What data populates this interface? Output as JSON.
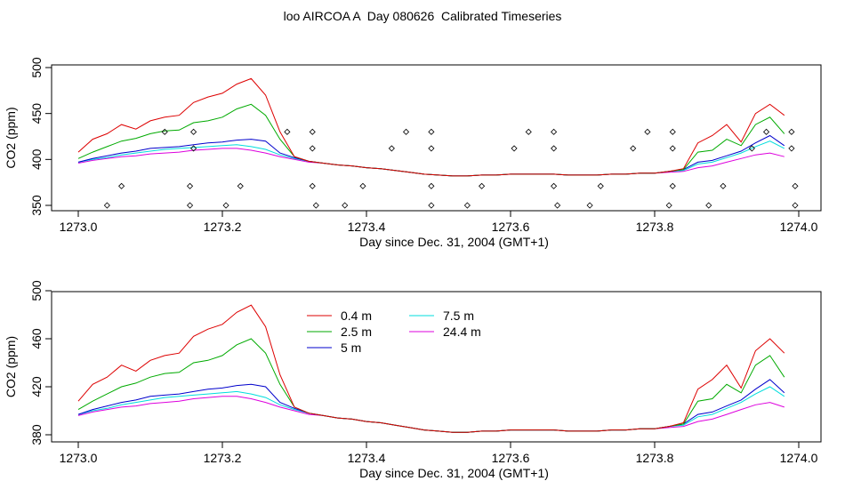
{
  "title": "loo AIRCOA A  Day 080626  Calibrated Timeseries",
  "chart_data": [
    {
      "type": "line+scatter",
      "xlabel": "Day since Dec. 31, 2004 (GMT+1)",
      "ylabel": "CO2 (ppm)",
      "xlim": [
        1273.0,
        1274.0
      ],
      "ylim": [
        345,
        505
      ],
      "xticks": [
        "1273.0",
        "1273.2",
        "1273.4",
        "1273.6",
        "1273.8",
        "1274.0"
      ],
      "yticks": [
        "350",
        "400",
        "450",
        "500"
      ],
      "x": [
        1273.0,
        1273.02,
        1273.04,
        1273.06,
        1273.08,
        1273.1,
        1273.12,
        1273.14,
        1273.16,
        1273.18,
        1273.2,
        1273.22,
        1273.24,
        1273.26,
        1273.28,
        1273.3,
        1273.32,
        1273.34,
        1273.36,
        1273.38,
        1273.4,
        1273.42,
        1273.44,
        1273.46,
        1273.48,
        1273.5,
        1273.52,
        1273.54,
        1273.56,
        1273.58,
        1273.6,
        1273.62,
        1273.64,
        1273.66,
        1273.68,
        1273.7,
        1273.72,
        1273.74,
        1273.76,
        1273.78,
        1273.8,
        1273.82,
        1273.84,
        1273.86,
        1273.88,
        1273.9,
        1273.92,
        1273.94,
        1273.96,
        1273.98
      ],
      "series": [
        {
          "name": "0.4 m",
          "color": "#dd0000",
          "values": [
            408,
            422,
            428,
            438,
            433,
            442,
            446,
            448,
            462,
            468,
            472,
            482,
            488,
            470,
            430,
            403,
            398,
            396,
            394,
            393,
            391,
            390,
            388,
            386,
            384,
            383,
            382,
            382,
            383,
            383,
            384,
            384,
            384,
            384,
            383,
            383,
            383,
            384,
            384,
            385,
            385,
            387,
            390,
            418,
            426,
            438,
            419,
            450,
            460,
            448
          ]
        },
        {
          "name": "2.5 m",
          "color": "#00aa00",
          "values": [
            401,
            408,
            414,
            420,
            423,
            428,
            431,
            432,
            440,
            442,
            446,
            455,
            460,
            448,
            422,
            403,
            398,
            396,
            394,
            393,
            391,
            390,
            388,
            386,
            384,
            383,
            382,
            382,
            383,
            383,
            384,
            384,
            384,
            384,
            383,
            383,
            383,
            384,
            384,
            385,
            385,
            387,
            389,
            408,
            410,
            422,
            415,
            438,
            446,
            428
          ]
        },
        {
          "name": "5 m",
          "color": "#0000cc",
          "values": [
            397,
            401,
            404,
            407,
            409,
            412,
            413,
            414,
            416,
            418,
            419,
            421,
            422,
            420,
            407,
            402,
            398,
            396,
            394,
            393,
            391,
            390,
            388,
            386,
            384,
            383,
            382,
            382,
            383,
            383,
            384,
            384,
            384,
            384,
            383,
            383,
            383,
            384,
            384,
            385,
            385,
            387,
            389,
            397,
            399,
            404,
            409,
            418,
            426,
            415
          ]
        },
        {
          "name": "7.5 m",
          "color": "#00dddd",
          "values": [
            397,
            400,
            402,
            405,
            407,
            409,
            411,
            412,
            413,
            414,
            415,
            416,
            414,
            411,
            405,
            401,
            398,
            396,
            394,
            393,
            391,
            390,
            388,
            386,
            384,
            383,
            382,
            382,
            383,
            383,
            384,
            384,
            384,
            384,
            383,
            383,
            383,
            384,
            384,
            385,
            385,
            387,
            388,
            395,
            397,
            402,
            407,
            414,
            420,
            412
          ]
        },
        {
          "name": "24.4 m",
          "color": "#dd00dd",
          "values": [
            396,
            399,
            401,
            403,
            404,
            406,
            407,
            408,
            410,
            411,
            412,
            412,
            410,
            407,
            403,
            400,
            397,
            396,
            394,
            393,
            391,
            390,
            388,
            386,
            384,
            383,
            382,
            382,
            383,
            383,
            384,
            384,
            384,
            384,
            383,
            383,
            383,
            384,
            384,
            385,
            385,
            386,
            387,
            391,
            393,
            397,
            401,
            405,
            407,
            403
          ]
        }
      ],
      "markers": [
        {
          "x": 1273.04,
          "y": 350
        },
        {
          "x": 1273.06,
          "y": 371
        },
        {
          "x": 1273.12,
          "y": 430
        },
        {
          "x": 1273.155,
          "y": 350
        },
        {
          "x": 1273.155,
          "y": 371
        },
        {
          "x": 1273.16,
          "y": 412
        },
        {
          "x": 1273.16,
          "y": 430
        },
        {
          "x": 1273.205,
          "y": 350
        },
        {
          "x": 1273.225,
          "y": 371
        },
        {
          "x": 1273.29,
          "y": 430
        },
        {
          "x": 1273.325,
          "y": 430
        },
        {
          "x": 1273.325,
          "y": 412
        },
        {
          "x": 1273.325,
          "y": 371
        },
        {
          "x": 1273.33,
          "y": 350
        },
        {
          "x": 1273.37,
          "y": 350
        },
        {
          "x": 1273.395,
          "y": 371
        },
        {
          "x": 1273.435,
          "y": 412
        },
        {
          "x": 1273.455,
          "y": 430
        },
        {
          "x": 1273.49,
          "y": 430
        },
        {
          "x": 1273.49,
          "y": 412
        },
        {
          "x": 1273.49,
          "y": 371
        },
        {
          "x": 1273.49,
          "y": 350
        },
        {
          "x": 1273.54,
          "y": 350
        },
        {
          "x": 1273.56,
          "y": 371
        },
        {
          "x": 1273.605,
          "y": 412
        },
        {
          "x": 1273.625,
          "y": 430
        },
        {
          "x": 1273.66,
          "y": 430
        },
        {
          "x": 1273.66,
          "y": 412
        },
        {
          "x": 1273.66,
          "y": 371
        },
        {
          "x": 1273.665,
          "y": 350
        },
        {
          "x": 1273.71,
          "y": 350
        },
        {
          "x": 1273.725,
          "y": 371
        },
        {
          "x": 1273.77,
          "y": 412
        },
        {
          "x": 1273.79,
          "y": 430
        },
        {
          "x": 1273.825,
          "y": 430
        },
        {
          "x": 1273.825,
          "y": 412
        },
        {
          "x": 1273.825,
          "y": 371
        },
        {
          "x": 1273.82,
          "y": 350
        },
        {
          "x": 1273.875,
          "y": 350
        },
        {
          "x": 1273.895,
          "y": 371
        },
        {
          "x": 1273.935,
          "y": 412
        },
        {
          "x": 1273.955,
          "y": 430
        },
        {
          "x": 1273.99,
          "y": 430
        },
        {
          "x": 1273.99,
          "y": 412
        },
        {
          "x": 1273.995,
          "y": 371
        },
        {
          "x": 1273.995,
          "y": 350
        }
      ]
    },
    {
      "type": "line",
      "xlabel": "Day since Dec. 31, 2004 (GMT+1)",
      "ylabel": "CO2 (ppm)",
      "xlim": [
        1273.0,
        1274.0
      ],
      "ylim": [
        375,
        505
      ],
      "xticks": [
        "1273.0",
        "1273.2",
        "1273.4",
        "1273.6",
        "1273.8",
        "1274.0"
      ],
      "yticks": [
        "380",
        "420",
        "460",
        "500"
      ],
      "legend": {
        "position": "top-center",
        "entries": [
          "0.4 m",
          "2.5 m",
          "5 m",
          "7.5 m",
          "24.4 m"
        ]
      },
      "series_ref": "same as panel 1"
    }
  ]
}
